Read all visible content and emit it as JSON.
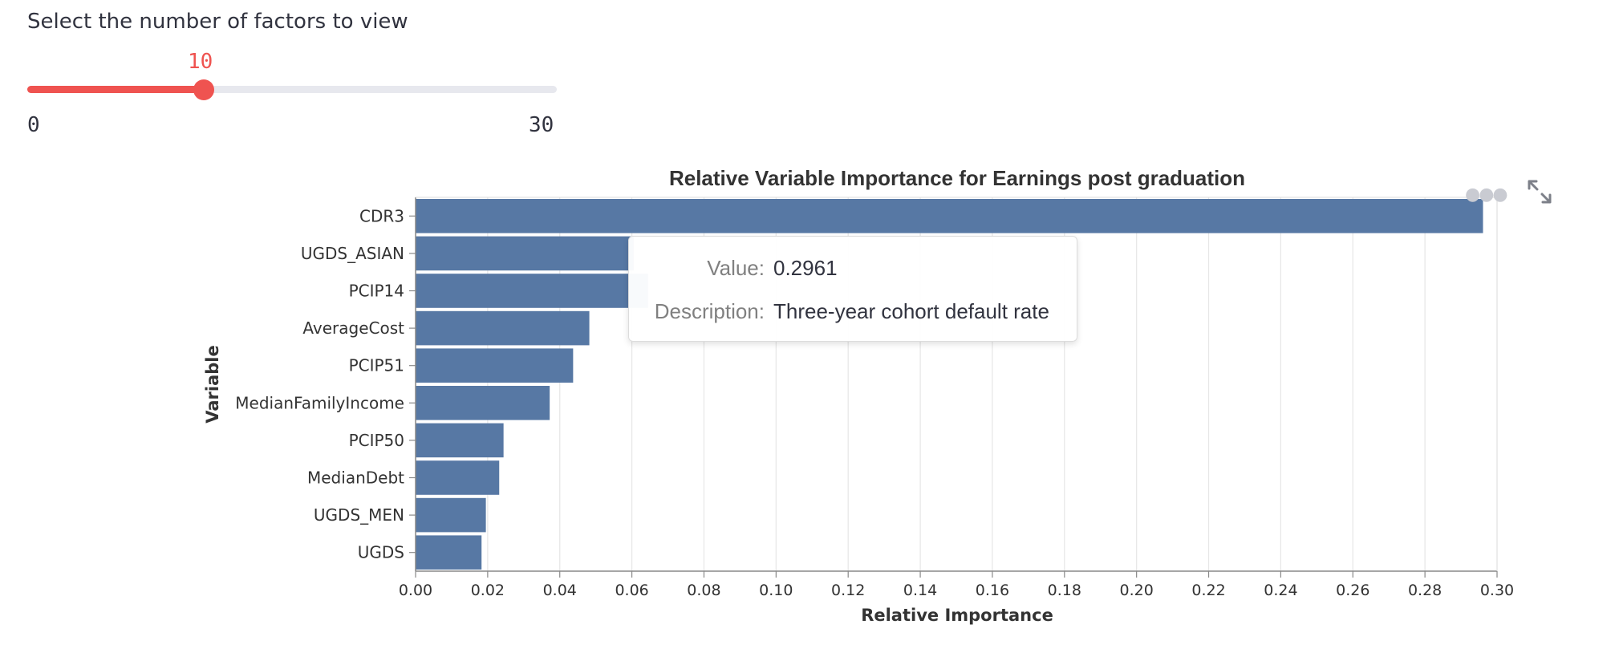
{
  "slider": {
    "label": "Select the number of factors to view",
    "value": 10,
    "value_text": "10",
    "min": 0,
    "max": 30,
    "min_text": "0",
    "max_text": "30",
    "accent_color": "#ef5350"
  },
  "chart_data": {
    "type": "bar",
    "orientation": "horizontal",
    "title": "Relative Variable Importance for Earnings post graduation",
    "xlabel": "Relative Importance",
    "ylabel": "Variable",
    "categories": [
      "CDR3",
      "UGDS_ASIAN",
      "PCIP14",
      "AverageCost",
      "PCIP51",
      "MedianFamilyIncome",
      "PCIP50",
      "MedianDebt",
      "UGDS_MEN",
      "UGDS"
    ],
    "values": [
      0.2961,
      0.0605,
      0.0645,
      0.0482,
      0.0437,
      0.0372,
      0.0244,
      0.0232,
      0.0195,
      0.0183
    ],
    "xlim": [
      0,
      0.3
    ],
    "xticks": [
      "0.00",
      "0.02",
      "0.04",
      "0.06",
      "0.08",
      "0.10",
      "0.12",
      "0.14",
      "0.16",
      "0.18",
      "0.20",
      "0.22",
      "0.24",
      "0.26",
      "0.28",
      "0.30"
    ],
    "grid": true,
    "bar_color": "#5778a4"
  },
  "tooltip": {
    "value_key": "Value:",
    "value_text": "0.2961",
    "description_key": "Description:",
    "description_text": "Three-year cohort default rate"
  },
  "toolbar": {
    "menu_icon": "more-dots-icon",
    "fullscreen_icon": "expand-icon"
  }
}
